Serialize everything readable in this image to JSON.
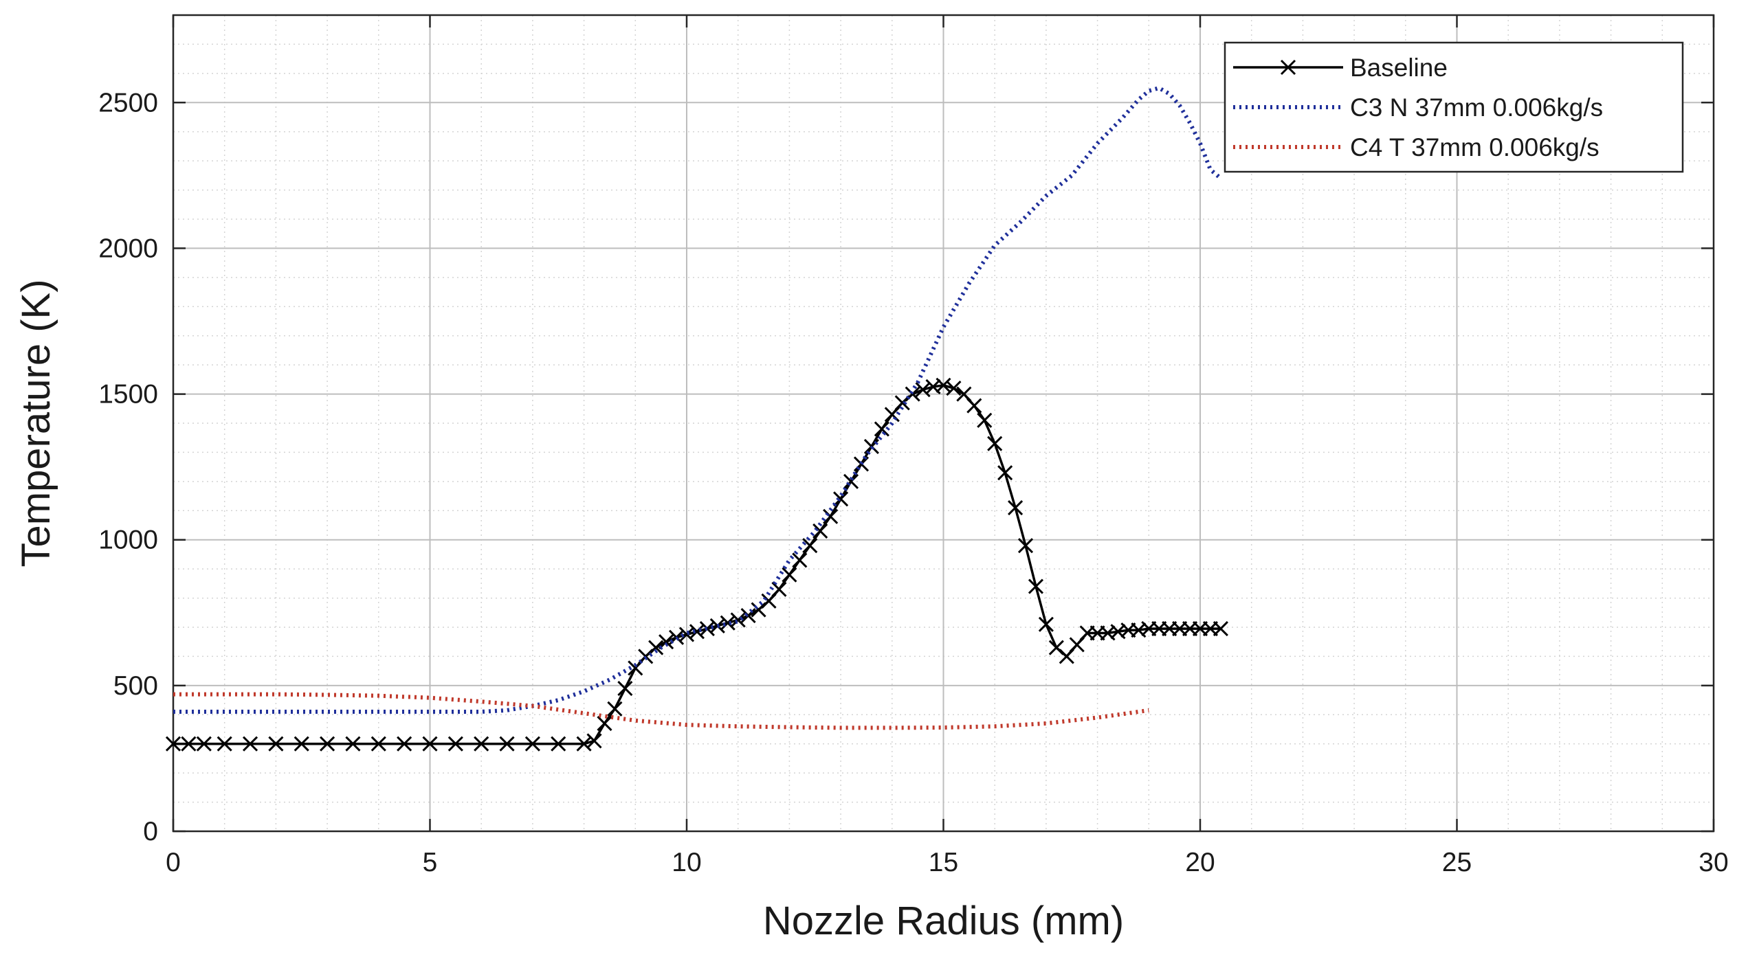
{
  "chart_data": {
    "type": "line",
    "title": "",
    "xlabel": "Nozzle Radius (mm)",
    "ylabel": "Temperature (K)",
    "xlim": [
      0,
      30
    ],
    "ylim": [
      0,
      2800
    ],
    "xticks": [
      0,
      5,
      10,
      15,
      20,
      25,
      30
    ],
    "yticks": [
      0,
      500,
      1000,
      1500,
      2000,
      2500
    ],
    "grid": "major and minor, dotted",
    "legend_position": "top-right",
    "series": [
      {
        "name": "Baseline",
        "color": "#000000",
        "style": "solid",
        "marker": "x",
        "x": [
          0,
          0.3,
          0.6,
          1.0,
          1.5,
          2.0,
          2.5,
          3.0,
          3.5,
          4.0,
          4.5,
          5.0,
          5.5,
          6.0,
          6.5,
          7.0,
          7.5,
          8.0,
          8.2,
          8.4,
          8.6,
          8.8,
          9.0,
          9.2,
          9.4,
          9.6,
          9.8,
          10.0,
          10.2,
          10.4,
          10.6,
          10.8,
          11.0,
          11.2,
          11.4,
          11.6,
          11.8,
          12.0,
          12.2,
          12.4,
          12.6,
          12.8,
          13.0,
          13.2,
          13.4,
          13.6,
          13.8,
          14.0,
          14.2,
          14.4,
          14.6,
          14.8,
          15.0,
          15.2,
          15.4,
          15.6,
          15.8,
          16.0,
          16.2,
          16.4,
          16.6,
          16.8,
          17.0,
          17.2,
          17.4,
          17.6,
          17.8,
          18.0,
          18.2,
          18.4,
          18.6,
          18.8,
          19.0,
          19.2,
          19.4,
          19.6,
          19.8,
          20.0,
          20.2,
          20.4
        ],
        "y": [
          300,
          300,
          300,
          300,
          300,
          300,
          300,
          300,
          300,
          300,
          300,
          300,
          300,
          300,
          300,
          300,
          300,
          300,
          310,
          370,
          420,
          490,
          560,
          600,
          630,
          650,
          665,
          675,
          685,
          695,
          705,
          715,
          725,
          740,
          760,
          790,
          830,
          880,
          930,
          980,
          1030,
          1080,
          1140,
          1200,
          1260,
          1320,
          1380,
          1430,
          1470,
          1500,
          1515,
          1525,
          1530,
          1520,
          1500,
          1460,
          1410,
          1330,
          1230,
          1110,
          980,
          840,
          710,
          630,
          600,
          640,
          680,
          680,
          680,
          685,
          690,
          690,
          695,
          695,
          695,
          695,
          695,
          695,
          695,
          695
        ]
      },
      {
        "name": "C3 N 37mm 0.006kg/s",
        "color": "#1f2f9a",
        "style": "dotted",
        "x": [
          0,
          1,
          2,
          3,
          4,
          5,
          6,
          6.5,
          7,
          7.5,
          8,
          8.5,
          9,
          9.5,
          10,
          10.5,
          11,
          11.5,
          12,
          12.5,
          13,
          13.5,
          14,
          14.5,
          15,
          15.5,
          16,
          16.5,
          17,
          17.5,
          18,
          18.5,
          18.8,
          19.0,
          19.2,
          19.4,
          19.6,
          19.8,
          20.0,
          20.2,
          20.4
        ],
        "y": [
          410,
          410,
          410,
          410,
          410,
          410,
          410,
          415,
          430,
          450,
          480,
          520,
          570,
          630,
          680,
          700,
          720,
          790,
          930,
          1030,
          1150,
          1290,
          1400,
          1540,
          1730,
          1880,
          2010,
          2090,
          2180,
          2250,
          2360,
          2450,
          2510,
          2540,
          2550,
          2530,
          2490,
          2430,
          2360,
          2270,
          2240
        ]
      },
      {
        "name": "C4 T 37mm 0.006kg/s",
        "color": "#c0392b",
        "style": "dotted",
        "x": [
          0,
          1,
          2,
          3,
          4,
          5,
          6,
          7,
          8,
          9,
          10,
          11,
          12,
          13,
          14,
          15,
          16,
          17,
          18,
          19
        ],
        "y": [
          470,
          470,
          470,
          468,
          465,
          458,
          445,
          430,
          405,
          380,
          365,
          360,
          357,
          355,
          355,
          356,
          360,
          370,
          390,
          415
        ]
      }
    ]
  },
  "legend": {
    "items": [
      {
        "label": "Baseline"
      },
      {
        "label": "C3 N 37mm 0.006kg/s"
      },
      {
        "label": "C4 T 37mm 0.006kg/s"
      }
    ]
  }
}
